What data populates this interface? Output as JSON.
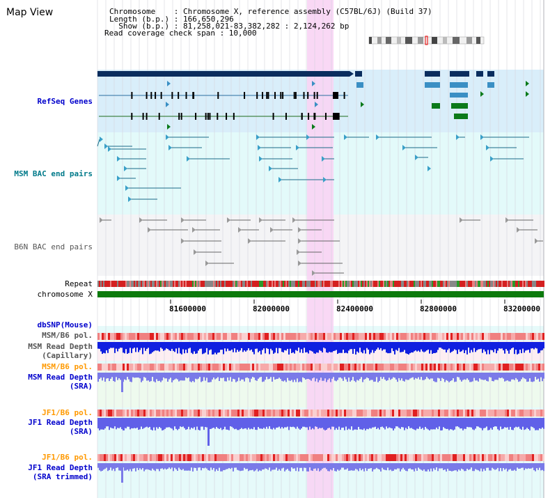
{
  "title": "Map View",
  "info": {
    "chromosome": "Chromosome    : Chromosome X, reference assembly (C57BL/6J) (Build 37)",
    "length": "Length (b.p.) : 166,650,296",
    "show": "  Show (b.p.) : 81,258,021-83,382,282 : 2,124,262 bp",
    "coverage": "Read coverage check span : 10,000"
  },
  "tracks": {
    "refseq": "RefSeq Genes",
    "msm_bac": "MSM BAC end pairs",
    "b6n_bac": "B6N BAC end pairs",
    "repeat": "Repeat",
    "chromosome": "chromosome X",
    "dbsnp": "dbSNP(Mouse)",
    "msm_b6_pol_1": "MSM/B6 pol.",
    "msm_read_depth_cap_1": "MSM Read Depth",
    "msm_read_depth_cap_2": "(Capillary)",
    "msm_b6_pol_2": "MSM/B6 pol.",
    "msm_read_depth_sra_1": "MSM Read Depth",
    "msm_read_depth_sra_2": "(SRA)",
    "jf1_b6_pol_1": "JF1/B6 pol.",
    "jf1_read_depth_sra_1": "JF1 Read Depth",
    "jf1_read_depth_sra_2": "(SRA)",
    "jf1_b6_pol_2": "JF1/B6 pol.",
    "jf1_read_depth_trim_1": "JF1 Read Depth",
    "jf1_read_depth_trim_2": "(SRA trimmed)"
  },
  "axis": {
    "ticks": [
      "81600000",
      "82000000",
      "82400000",
      "82800000",
      "83200000"
    ]
  },
  "colors": {
    "accent_blue": "#0000cc",
    "accent_orange": "#ff9900",
    "refseq_bg": "#d9eefa",
    "bac_bg": "#e3fafa",
    "highlight": "#f8d4f4",
    "gene_dark": "#0a2d5e",
    "gene_mid": "#3a8fc4",
    "gene_green": "#0b7a1a",
    "chrom_green": "#0c7a0c"
  }
}
